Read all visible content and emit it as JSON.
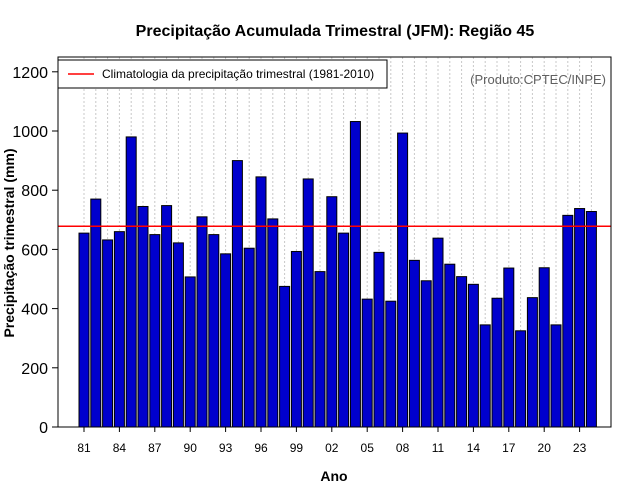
{
  "chart_data": {
    "type": "bar",
    "title": "Precipitação Acumulada Trimestral (JFM): Região 45",
    "xlabel": "Ano",
    "ylabel": "Precipitação trimestral (mm)",
    "ylim": [
      0,
      1250
    ],
    "yticks": [
      0,
      200,
      400,
      600,
      800,
      1000,
      1200
    ],
    "xtick_labels": [
      "81",
      "84",
      "87",
      "90",
      "93",
      "96",
      "99",
      "02",
      "05",
      "08",
      "11",
      "14",
      "17",
      "20",
      "23"
    ],
    "categories": [
      1981,
      1982,
      1983,
      1984,
      1985,
      1986,
      1987,
      1988,
      1989,
      1990,
      1991,
      1992,
      1993,
      1994,
      1995,
      1996,
      1997,
      1998,
      1999,
      2000,
      2001,
      2002,
      2003,
      2004,
      2005,
      2006,
      2007,
      2008,
      2009,
      2010,
      2011,
      2012,
      2013,
      2014,
      2015,
      2016,
      2017,
      2018,
      2019,
      2020,
      2021,
      2022,
      2023,
      2024
    ],
    "values": [
      655,
      770,
      632,
      660,
      980,
      745,
      650,
      748,
      622,
      507,
      710,
      650,
      585,
      900,
      604,
      845,
      703,
      475,
      593,
      838,
      525,
      778,
      655,
      1032,
      432,
      590,
      425,
      993,
      563,
      494,
      638,
      550,
      508,
      482,
      345,
      435,
      537,
      325,
      437,
      538,
      345,
      715,
      738,
      728
    ],
    "bar_color": "#0000cd",
    "climatology": {
      "label": "Climatologia da precipitação trimestral (1981-2010)",
      "value": 678,
      "color": "#ff0000"
    },
    "annotation": "(Produto:CPTEC/INPE)",
    "grid": "vertical dotted",
    "legend_position": "top-left"
  }
}
